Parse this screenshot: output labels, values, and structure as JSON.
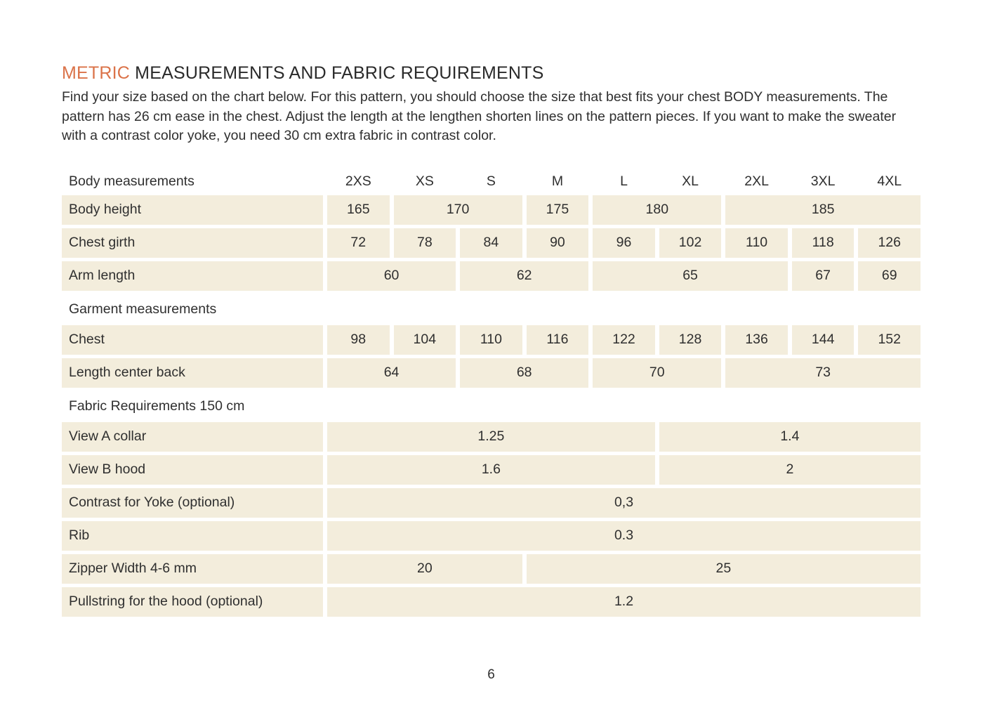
{
  "title": {
    "accent": "METRIC",
    "rest": " MEASUREMENTS AND FABRIC REQUIREMENTS"
  },
  "intro": "Find your size based on the chart below. For this pattern, you should choose the size that best fits your chest BODY measurements. The pattern has 26 cm ease in the chest. Adjust the length at the lengthen shorten lines on the pattern pieces. If you want to make the sweater with a contrast color yoke, you need 30 cm extra fabric in contrast color.",
  "colors": {
    "accent": "#DB7349",
    "cell_background": "#F3EDDC",
    "text": "#2F2F2F"
  },
  "table": {
    "size_columns": [
      "2XS",
      "XS",
      "S",
      "M",
      "L",
      "XL",
      "2XL",
      "3XL",
      "4XL"
    ],
    "sections": [
      {
        "header": "Body measurements",
        "show_size_columns": true,
        "rows": [
          {
            "label": "Body height",
            "cells": [
              {
                "value": "165",
                "span": 1
              },
              {
                "value": "170",
                "span": 2
              },
              {
                "value": "175",
                "span": 1
              },
              {
                "value": "180",
                "span": 2
              },
              {
                "value": "185",
                "span": 3
              }
            ]
          },
          {
            "label": "Chest girth",
            "cells": [
              {
                "value": "72",
                "span": 1
              },
              {
                "value": "78",
                "span": 1
              },
              {
                "value": "84",
                "span": 1
              },
              {
                "value": "90",
                "span": 1
              },
              {
                "value": "96",
                "span": 1
              },
              {
                "value": "102",
                "span": 1
              },
              {
                "value": "110",
                "span": 1
              },
              {
                "value": "118",
                "span": 1
              },
              {
                "value": "126",
                "span": 1
              }
            ]
          },
          {
            "label": "Arm length",
            "cells": [
              {
                "value": "60",
                "span": 2
              },
              {
                "value": "62",
                "span": 2
              },
              {
                "value": "65",
                "span": 3
              },
              {
                "value": "67",
                "span": 1
              },
              {
                "value": "69",
                "span": 1
              }
            ]
          }
        ]
      },
      {
        "header": "Garment measurements",
        "show_size_columns": false,
        "rows": [
          {
            "label": "Chest",
            "cells": [
              {
                "value": "98",
                "span": 1
              },
              {
                "value": "104",
                "span": 1
              },
              {
                "value": "110",
                "span": 1
              },
              {
                "value": "116",
                "span": 1
              },
              {
                "value": "122",
                "span": 1
              },
              {
                "value": "128",
                "span": 1
              },
              {
                "value": "136",
                "span": 1
              },
              {
                "value": "144",
                "span": 1
              },
              {
                "value": "152",
                "span": 1
              }
            ]
          },
          {
            "label": "Length center back",
            "cells": [
              {
                "value": "64",
                "span": 2
              },
              {
                "value": "68",
                "span": 2
              },
              {
                "value": "70",
                "span": 2
              },
              {
                "value": "73",
                "span": 3
              }
            ]
          }
        ]
      },
      {
        "header": "Fabric Requirements 150 cm",
        "show_size_columns": false,
        "rows": [
          {
            "label": "View A collar",
            "cells": [
              {
                "value": "1.25",
                "span": 5
              },
              {
                "value": "1.4",
                "span": 4
              }
            ]
          },
          {
            "label": "View B hood",
            "cells": [
              {
                "value": "1.6",
                "span": 5
              },
              {
                "value": "2",
                "span": 4
              }
            ]
          },
          {
            "label": "Contrast for Yoke (optional)",
            "cells": [
              {
                "value": "0,3",
                "span": 9
              }
            ]
          },
          {
            "label": "Rib",
            "cells": [
              {
                "value": "0.3",
                "span": 9
              }
            ]
          },
          {
            "label": "Zipper Width 4-6 mm",
            "cells": [
              {
                "value": "20",
                "span": 3
              },
              {
                "value": "25",
                "span": 6
              }
            ]
          },
          {
            "label": "Pullstring for the hood (optional)",
            "cells": [
              {
                "value": "1.2",
                "span": 9
              }
            ]
          }
        ]
      }
    ]
  },
  "page_number": "6"
}
